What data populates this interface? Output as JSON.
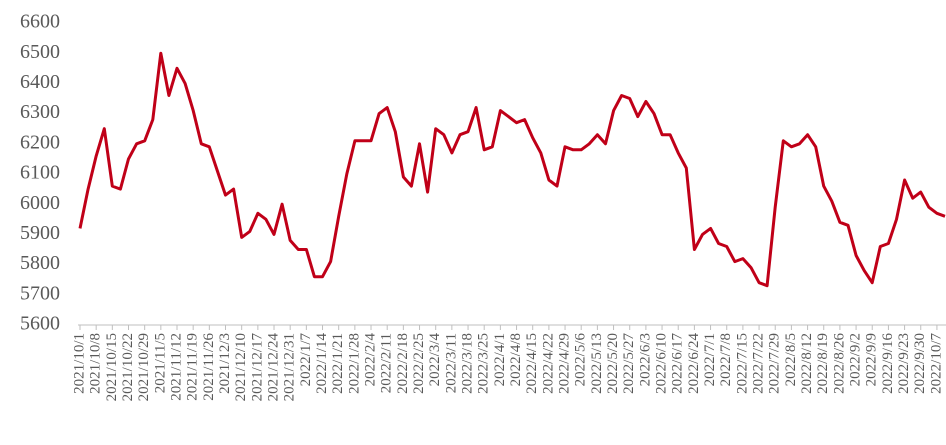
{
  "chart_data": {
    "type": "line",
    "categories": [
      "2021/10/1",
      null,
      "2021/10/8",
      null,
      "2021/10/15",
      null,
      "2021/10/22",
      null,
      "2021/10/29",
      null,
      "2021/11/5",
      null,
      "2021/11/12",
      null,
      "2021/11/19",
      null,
      "2021/11/26",
      null,
      "2021/12/3",
      null,
      "2021/12/10",
      null,
      "2021/12/17",
      null,
      "2021/12/24",
      null,
      "2021/12/31",
      null,
      "2022/1/7",
      null,
      "2022/1/14",
      null,
      "2022/1/21",
      null,
      "2022/1/28",
      null,
      "2022/2/4",
      null,
      "2022/2/11",
      null,
      "2022/2/18",
      null,
      "2022/2/25",
      null,
      "2022/3/4",
      null,
      "2022/3/11",
      null,
      "2022/3/18",
      null,
      "2022/3/25",
      null,
      "2022/4/1",
      null,
      "2022/4/8",
      null,
      "2022/4/15",
      null,
      "2022/4/22",
      null,
      "2022/4/29",
      null,
      "2022/5/6",
      null,
      "2022/5/13",
      null,
      "2022/5/20",
      null,
      "2022/5/27",
      null,
      "2022/6/3",
      null,
      "2022/6/10",
      null,
      "2022/6/17",
      null,
      "2022/6/24",
      null,
      "2022/7/1",
      null,
      "2022/7/8",
      null,
      "2022/7/15",
      null,
      "2022/7/22",
      null,
      "2022/7/29",
      null,
      "2022/8/5",
      null,
      "2022/8/12",
      null,
      "2022/8/19",
      null,
      "2022/8/26",
      null,
      "2022/9/2",
      null,
      "2022/9/9",
      null,
      "2022/9/16",
      null,
      "2022/9/23",
      null,
      "2022/9/30",
      null,
      "2022/10/7",
      null
    ],
    "values": [
      5920,
      6050,
      6160,
      6250,
      6060,
      6050,
      6150,
      6200,
      6210,
      6280,
      6500,
      6360,
      6450,
      6400,
      6310,
      6200,
      6190,
      6110,
      6030,
      6050,
      5890,
      5910,
      5970,
      5950,
      5900,
      6000,
      5880,
      5850,
      5850,
      5760,
      5760,
      5810,
      5960,
      6100,
      6210,
      6210,
      6210,
      6300,
      6320,
      6240,
      6090,
      6060,
      6200,
      6040,
      6250,
      6230,
      6170,
      6230,
      6240,
      6320,
      6180,
      6190,
      6310,
      6290,
      6270,
      6280,
      6220,
      6170,
      6080,
      6060,
      6190,
      6180,
      6180,
      6200,
      6230,
      6200,
      6310,
      6360,
      6350,
      6290,
      6340,
      6300,
      6230,
      6230,
      6170,
      6120,
      5850,
      5900,
      5920,
      5870,
      5860,
      5810,
      5820,
      5790,
      5740,
      5730,
      5990,
      6210,
      6190,
      6200,
      6230,
      6190,
      6060,
      6010,
      5940,
      5930,
      5830,
      5780,
      5740,
      5860,
      5870,
      5950,
      6080,
      6020,
      6040,
      5990,
      5970,
      5960
    ],
    "color": "#c00018",
    "ylim": [
      5600,
      6600
    ],
    "yticks": [
      5600,
      5700,
      5800,
      5900,
      6000,
      6100,
      6200,
      6300,
      6400,
      6500,
      6600
    ]
  }
}
